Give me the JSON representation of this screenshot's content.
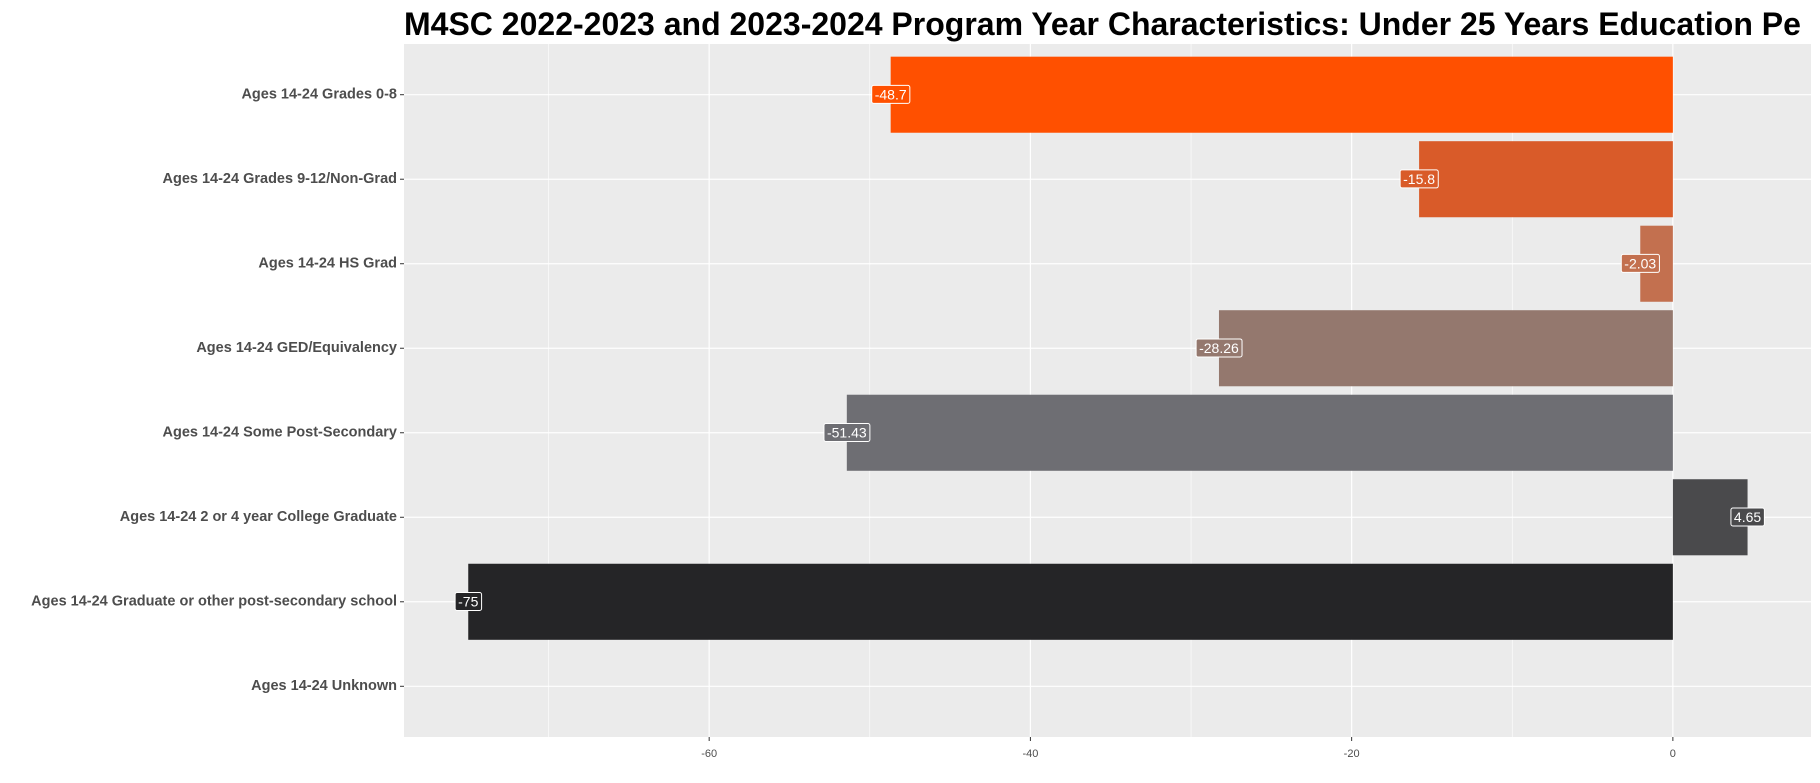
{
  "chart_data": {
    "type": "bar",
    "orientation": "horizontal",
    "title": "M4SC 2022-2023 and 2023-2024 Program Year Characteristics: Under 25 Years Education Pe",
    "categories": [
      "Ages 14-24 Grades 0-8",
      "Ages 14-24 Grades 9-12/Non-Grad",
      "Ages 14-24 HS Grad",
      "Ages 14-24 GED/Equivalency",
      "Ages 14-24 Some Post-Secondary",
      "Ages 14-24 2 or 4 year College Graduate",
      "Ages 14-24 Graduate or other post-secondary school",
      "Ages 14-24 Unknown"
    ],
    "values": [
      -48.7,
      -15.8,
      -2.03,
      -28.26,
      -51.43,
      4.65,
      -75,
      null
    ],
    "colors": [
      "#ff5000",
      "#d95b29",
      "#c3704f",
      "#94786e",
      "#6e6e73",
      "#4a4a4c",
      "#252527"
    ],
    "xlim": [
      -79,
      8.6
    ],
    "xticks": [
      -60,
      -40,
      -20,
      0
    ],
    "minor_xticks": [
      -70,
      -50,
      -30,
      -10
    ],
    "grid": true
  }
}
